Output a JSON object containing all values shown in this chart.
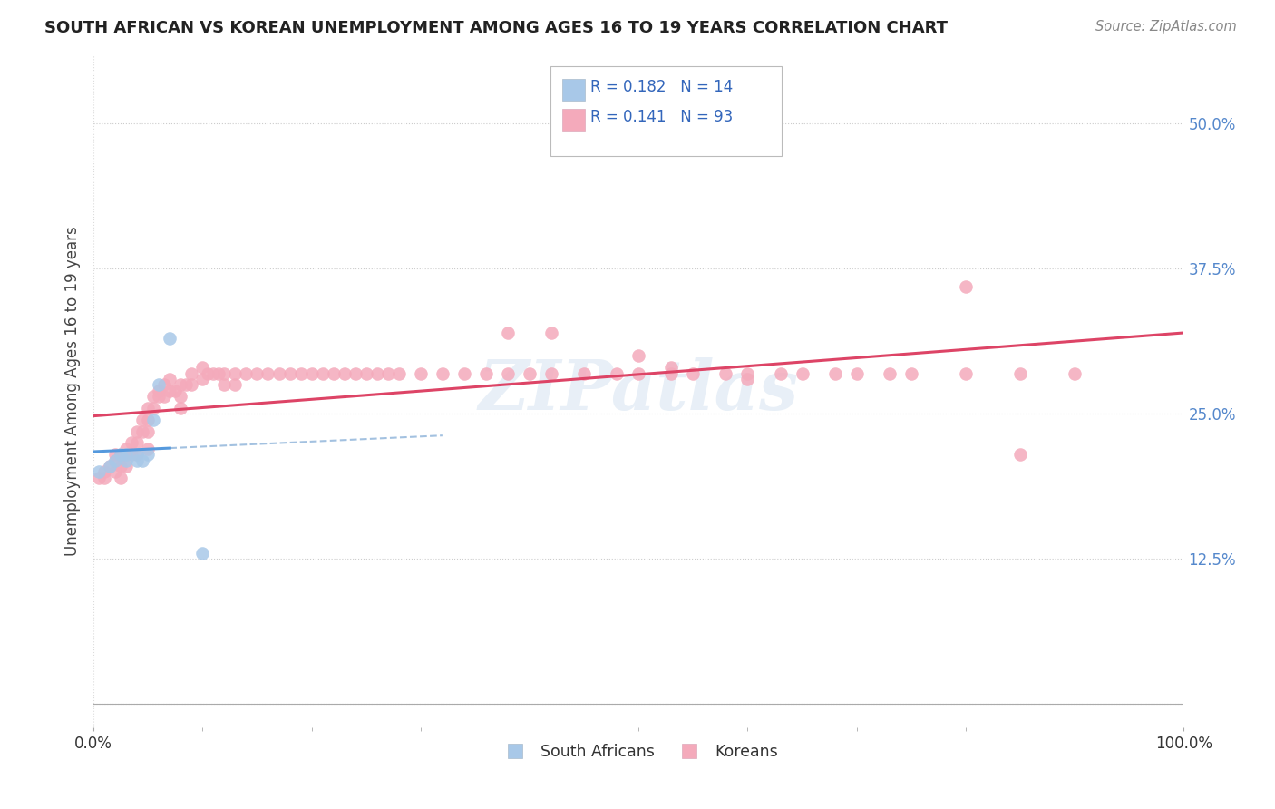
{
  "title": "SOUTH AFRICAN VS KOREAN UNEMPLOYMENT AMONG AGES 16 TO 19 YEARS CORRELATION CHART",
  "source": "Source: ZipAtlas.com",
  "ylabel": "Unemployment Among Ages 16 to 19 years",
  "xlim": [
    0.0,
    1.0
  ],
  "ylim": [
    -0.02,
    0.56
  ],
  "yticks": [
    0.0,
    0.125,
    0.25,
    0.375,
    0.5
  ],
  "ytick_labels": [
    "",
    "12.5%",
    "25.0%",
    "37.5%",
    "50.0%"
  ],
  "xtick_labels": [
    "0.0%",
    "100.0%"
  ],
  "xticks": [
    0.0,
    1.0
  ],
  "sa_R": 0.182,
  "sa_N": 14,
  "ko_R": 0.141,
  "ko_N": 93,
  "sa_color": "#a8c8e8",
  "ko_color": "#f4aabb",
  "sa_line_color": "#5599dd",
  "ko_line_color": "#dd4466",
  "sa_dash_color": "#99bbdd",
  "watermark_text": "ZIPatlas",
  "sa_x": [
    0.005,
    0.015,
    0.02,
    0.025,
    0.03,
    0.03,
    0.04,
    0.04,
    0.045,
    0.05,
    0.055,
    0.06,
    0.07,
    0.1
  ],
  "sa_y": [
    0.2,
    0.205,
    0.21,
    0.215,
    0.21,
    0.215,
    0.215,
    0.21,
    0.21,
    0.215,
    0.245,
    0.275,
    0.315,
    0.13
  ],
  "ko_x": [
    0.005,
    0.01,
    0.01,
    0.015,
    0.02,
    0.02,
    0.02,
    0.025,
    0.025,
    0.025,
    0.03,
    0.03,
    0.03,
    0.035,
    0.035,
    0.04,
    0.04,
    0.04,
    0.045,
    0.045,
    0.05,
    0.05,
    0.05,
    0.05,
    0.055,
    0.055,
    0.06,
    0.06,
    0.065,
    0.065,
    0.07,
    0.07,
    0.075,
    0.08,
    0.08,
    0.08,
    0.085,
    0.09,
    0.09,
    0.1,
    0.1,
    0.105,
    0.11,
    0.115,
    0.12,
    0.12,
    0.13,
    0.13,
    0.14,
    0.15,
    0.16,
    0.17,
    0.18,
    0.19,
    0.2,
    0.21,
    0.22,
    0.23,
    0.24,
    0.25,
    0.26,
    0.27,
    0.28,
    0.3,
    0.32,
    0.34,
    0.36,
    0.38,
    0.4,
    0.42,
    0.45,
    0.48,
    0.5,
    0.53,
    0.55,
    0.58,
    0.6,
    0.63,
    0.65,
    0.68,
    0.7,
    0.73,
    0.75,
    0.8,
    0.85,
    0.9,
    0.38,
    0.42,
    0.5,
    0.53,
    0.6,
    0.8,
    0.85
  ],
  "ko_y": [
    0.195,
    0.2,
    0.195,
    0.205,
    0.215,
    0.21,
    0.2,
    0.215,
    0.205,
    0.195,
    0.22,
    0.215,
    0.205,
    0.225,
    0.215,
    0.235,
    0.225,
    0.215,
    0.245,
    0.235,
    0.255,
    0.245,
    0.235,
    0.22,
    0.265,
    0.255,
    0.27,
    0.265,
    0.275,
    0.265,
    0.28,
    0.27,
    0.27,
    0.275,
    0.265,
    0.255,
    0.275,
    0.285,
    0.275,
    0.29,
    0.28,
    0.285,
    0.285,
    0.285,
    0.285,
    0.275,
    0.285,
    0.275,
    0.285,
    0.285,
    0.285,
    0.285,
    0.285,
    0.285,
    0.285,
    0.285,
    0.285,
    0.285,
    0.285,
    0.285,
    0.285,
    0.285,
    0.285,
    0.285,
    0.285,
    0.285,
    0.285,
    0.285,
    0.285,
    0.285,
    0.285,
    0.285,
    0.285,
    0.285,
    0.285,
    0.285,
    0.285,
    0.285,
    0.285,
    0.285,
    0.285,
    0.285,
    0.285,
    0.285,
    0.285,
    0.285,
    0.32,
    0.32,
    0.3,
    0.29,
    0.28,
    0.36,
    0.215
  ]
}
